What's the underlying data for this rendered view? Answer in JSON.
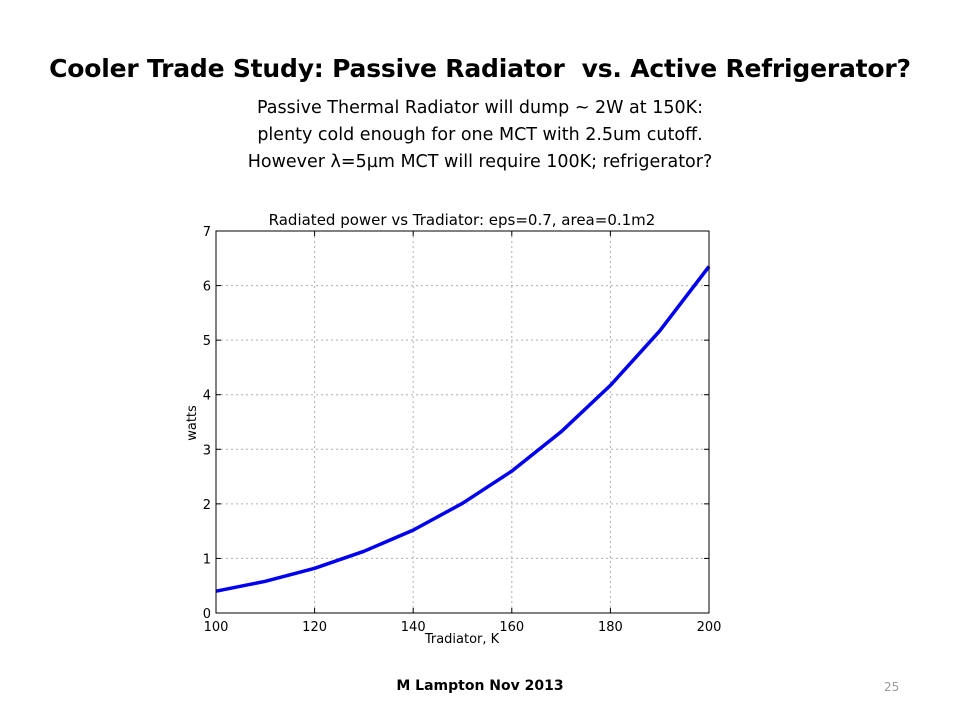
{
  "slide": {
    "title": "Cooler Trade Study: Passive Radiator  vs. Active Refrigerator?",
    "subtitle_lines": [
      "Passive Thermal Radiator will dump ~ 2W at 150K:",
      "plenty cold enough for one MCT with 2.5um cutoff.",
      "However λ=5µm MCT will require 100K; refrigerator?"
    ],
    "footer": "M Lampton Nov 2013",
    "page_number": "25"
  },
  "chart_data": {
    "type": "line",
    "title": "Radiated power vs Tradiator: eps=0.7, area=0.1m2",
    "xlabel": "Tradiator, K",
    "ylabel": "watts",
    "xlim": [
      100,
      200
    ],
    "ylim": [
      0,
      7
    ],
    "xticks": [
      100,
      120,
      140,
      160,
      180,
      200
    ],
    "yticks": [
      0,
      1,
      2,
      3,
      4,
      5,
      6,
      7
    ],
    "grid": true,
    "series": [
      {
        "color": "#0000ee",
        "x": [
          100,
          110,
          120,
          130,
          140,
          150,
          160,
          170,
          180,
          190,
          200
        ],
        "y": [
          0.4,
          0.58,
          0.82,
          1.13,
          1.52,
          2.01,
          2.6,
          3.32,
          4.17,
          5.17,
          6.35
        ]
      }
    ]
  }
}
